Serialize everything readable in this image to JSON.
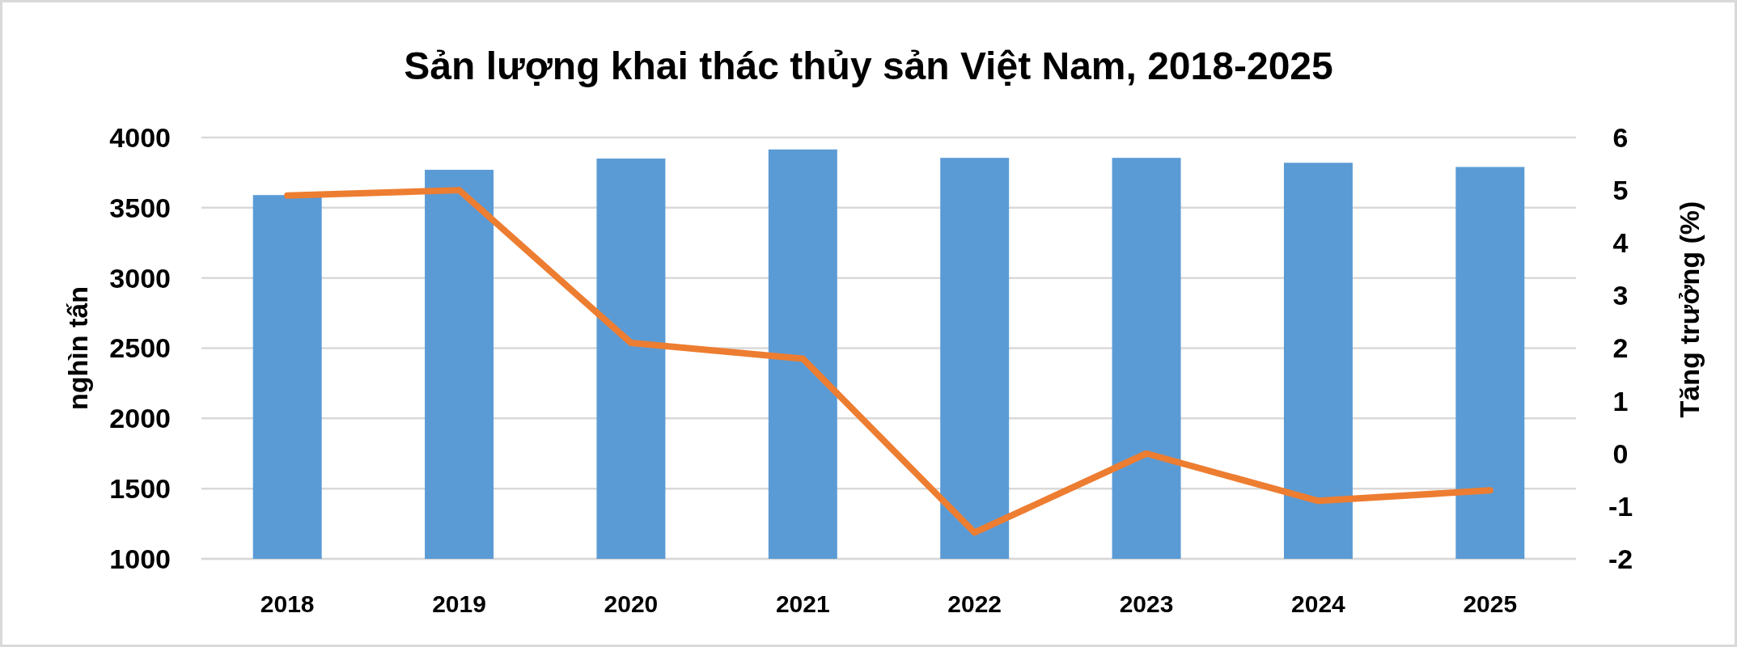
{
  "chart_data": {
    "type": "bar",
    "title": "Sản lượng khai thác thủy sản Việt Nam, 2018-2025",
    "ylabel": "nghìn tấn",
    "y2label": "Tăng trưởng (%)",
    "categories": [
      "2018",
      "2019",
      "2020",
      "2021",
      "2022",
      "2023",
      "2024",
      "2025"
    ],
    "series": [
      {
        "color": "#5b9bd5",
        "values": [
          3590,
          3770,
          3850,
          3915,
          3855,
          3855,
          3820,
          3790
        ]
      },
      {
        "type": "line",
        "axis": "y2",
        "color": "#ed7d31",
        "values": [
          4.9,
          5.0,
          2.1,
          1.8,
          -1.5,
          0.0,
          -0.9,
          -0.7
        ]
      }
    ],
    "ylim": [
      1000,
      4000
    ],
    "yticks": [
      1000,
      1500,
      2000,
      2500,
      3000,
      3500,
      4000
    ],
    "y2lim": [
      -2,
      6
    ],
    "y2ticks": [
      -2,
      -1,
      0,
      1,
      2,
      3,
      4,
      5,
      6
    ],
    "grid": "y"
  }
}
